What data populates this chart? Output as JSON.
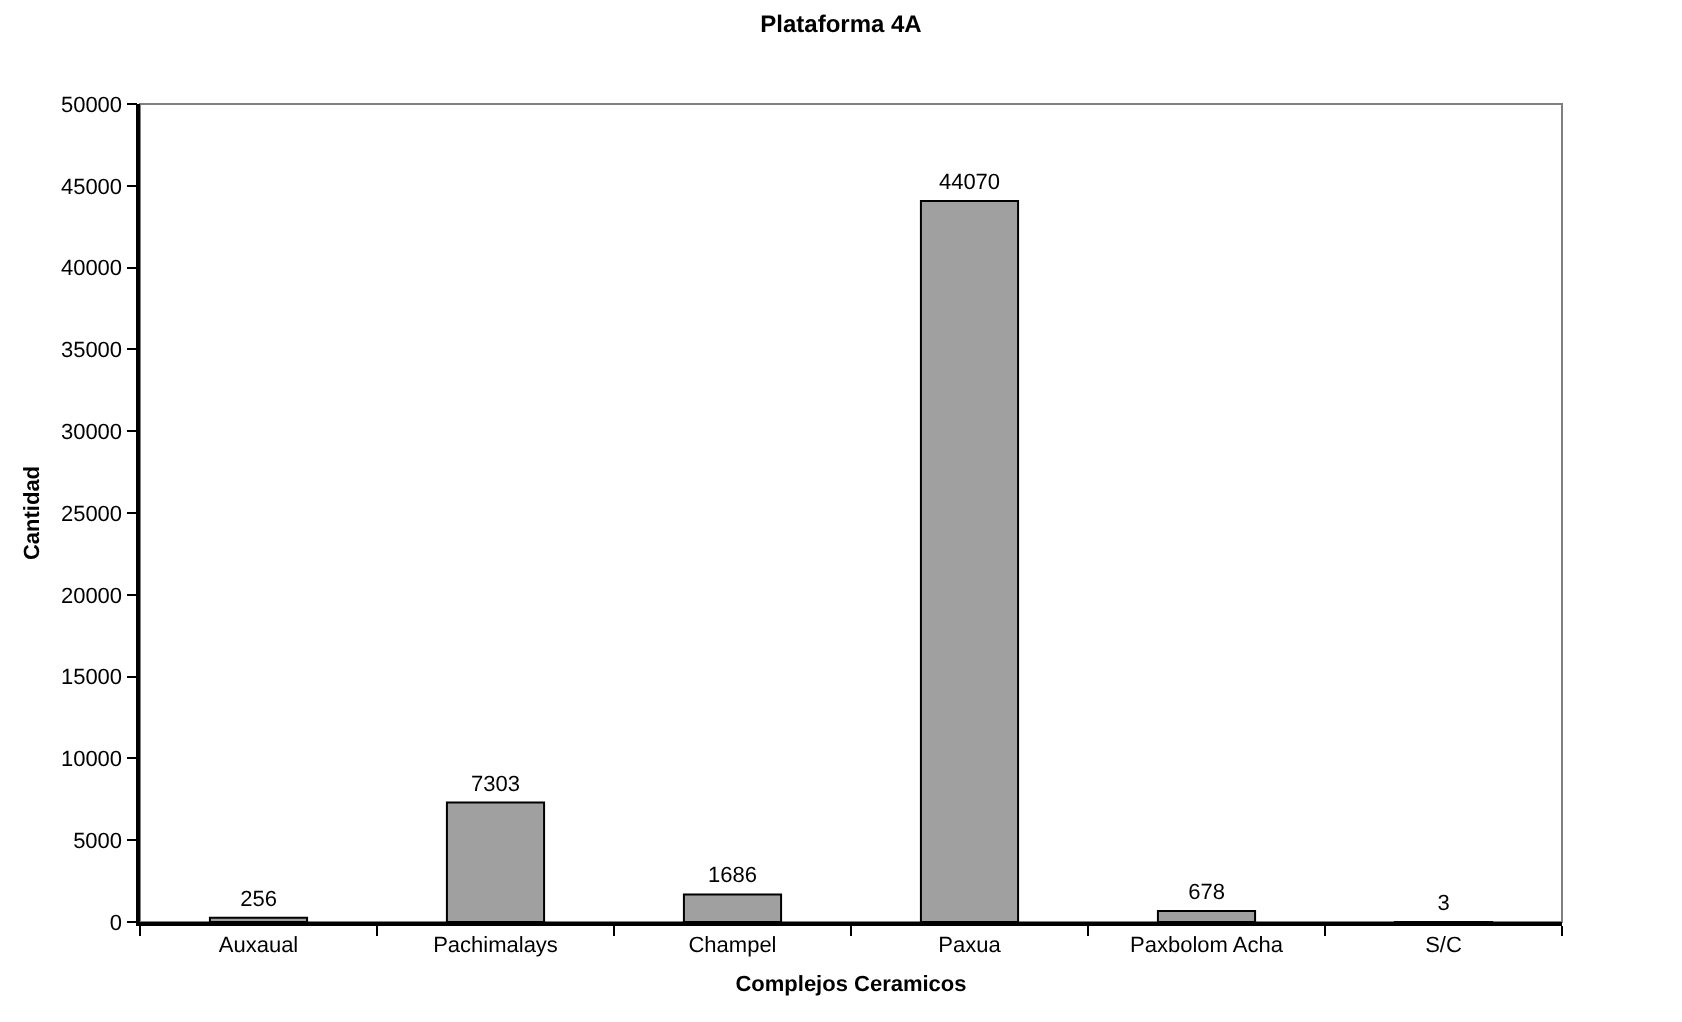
{
  "chart_data": {
    "type": "bar",
    "title": "Plataforma 4A",
    "xlabel": "Complejos Ceramicos",
    "ylabel": "Cantidad",
    "categories": [
      "Auxaual",
      "Pachimalays",
      "Champel",
      "Paxua",
      "Paxbolom Acha",
      "S/C"
    ],
    "values": [
      256,
      7303,
      1686,
      44070,
      678,
      3
    ],
    "color": "#a0a0a0",
    "ylim": [
      0,
      50000
    ],
    "yticks": [
      0,
      5000,
      10000,
      15000,
      20000,
      25000,
      30000,
      35000,
      40000,
      45000,
      50000
    ],
    "data_labels": true,
    "grid": false
  }
}
